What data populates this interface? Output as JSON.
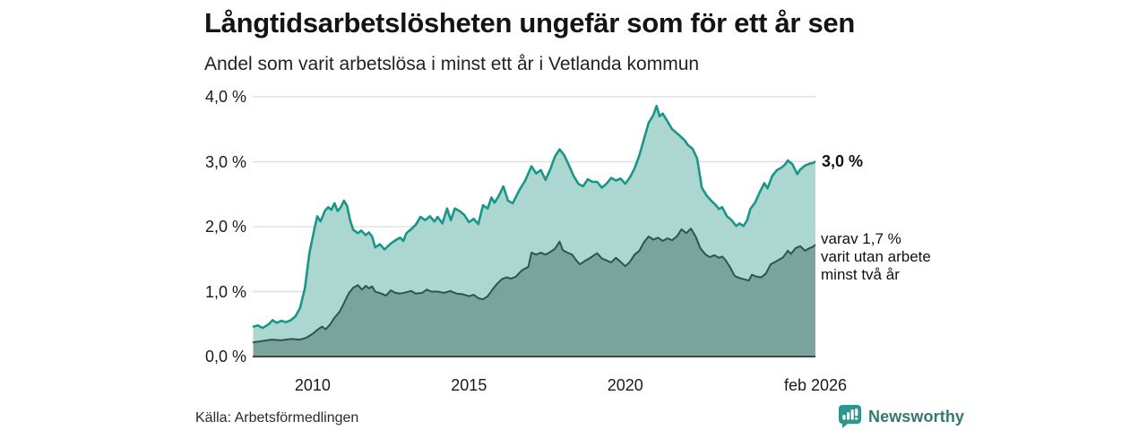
{
  "header": {
    "title": "Långtidsarbetslösheten ungefär som för ett år sen",
    "subtitle": "Andel som varit arbetslösa i minst ett år i Vetlanda kommun"
  },
  "annotations": {
    "total_label": "3,0 %",
    "subset_lines": [
      "varav 1,7 %",
      "varit utan arbete",
      "minst två år"
    ]
  },
  "footer": {
    "source": "Källa: Arbetsförmedlingen",
    "brand_name": "Newsworthy"
  },
  "colors": {
    "series_total_line": "#1a9688",
    "series_total_fill": "#abd7d0",
    "series_subset_line": "#2f544e",
    "series_subset_fill": "#7aa39b",
    "gridline": "#e0e0e0",
    "zero_axis": "#444444",
    "brand_teal": "#2e968c",
    "brand_text": "#36786f"
  },
  "chart_data": {
    "type": "area",
    "title": "Långtidsarbetslösheten ungefär som för ett år sen",
    "subtitle": "Andel som varit arbetslösa i minst ett år i Vetlanda kommun",
    "source": "Källa: Arbetsförmedlingen",
    "grid": true,
    "legend_position": "right-annotations",
    "x_domain": [
      2008.083,
      2026.083
    ],
    "y_domain": [
      0,
      4
    ],
    "y_ticks": [
      {
        "label": "0,0 %",
        "value": 0
      },
      {
        "label": "1,0 %",
        "value": 1
      },
      {
        "label": "2,0 %",
        "value": 2
      },
      {
        "label": "3,0 %",
        "value": 3
      },
      {
        "label": "4,0 %",
        "value": 4
      }
    ],
    "x_ticks": [
      {
        "label": "2010",
        "year": 2010
      },
      {
        "label": "2015",
        "year": 2015
      },
      {
        "label": "2020",
        "year": 2020
      },
      {
        "label": "feb 2026",
        "year": 2026.083
      }
    ],
    "series": [
      {
        "name": "Andel arbetslösa minst ett år",
        "end_value_pct": 3.0,
        "points": [
          [
            2008.1,
            0.46
          ],
          [
            2008.25,
            0.48
          ],
          [
            2008.4,
            0.44
          ],
          [
            2008.6,
            0.5
          ],
          [
            2008.72,
            0.56
          ],
          [
            2008.85,
            0.52
          ],
          [
            2009.0,
            0.55
          ],
          [
            2009.15,
            0.53
          ],
          [
            2009.3,
            0.56
          ],
          [
            2009.45,
            0.62
          ],
          [
            2009.6,
            0.75
          ],
          [
            2009.75,
            1.05
          ],
          [
            2009.9,
            1.6
          ],
          [
            2010.05,
            1.95
          ],
          [
            2010.15,
            2.16
          ],
          [
            2010.25,
            2.08
          ],
          [
            2010.4,
            2.25
          ],
          [
            2010.5,
            2.3
          ],
          [
            2010.6,
            2.26
          ],
          [
            2010.7,
            2.36
          ],
          [
            2010.8,
            2.24
          ],
          [
            2010.9,
            2.3
          ],
          [
            2011.0,
            2.4
          ],
          [
            2011.1,
            2.32
          ],
          [
            2011.2,
            2.1
          ],
          [
            2011.3,
            1.95
          ],
          [
            2011.45,
            1.9
          ],
          [
            2011.55,
            1.94
          ],
          [
            2011.7,
            1.87
          ],
          [
            2011.8,
            1.91
          ],
          [
            2011.9,
            1.85
          ],
          [
            2012.0,
            1.68
          ],
          [
            2012.15,
            1.73
          ],
          [
            2012.3,
            1.65
          ],
          [
            2012.5,
            1.74
          ],
          [
            2012.65,
            1.79
          ],
          [
            2012.8,
            1.83
          ],
          [
            2012.9,
            1.78
          ],
          [
            2013.0,
            1.9
          ],
          [
            2013.15,
            1.96
          ],
          [
            2013.3,
            2.03
          ],
          [
            2013.45,
            2.15
          ],
          [
            2013.6,
            2.1
          ],
          [
            2013.75,
            2.16
          ],
          [
            2013.9,
            2.08
          ],
          [
            2014.0,
            2.15
          ],
          [
            2014.15,
            2.05
          ],
          [
            2014.3,
            2.28
          ],
          [
            2014.42,
            2.1
          ],
          [
            2014.55,
            2.28
          ],
          [
            2014.7,
            2.24
          ],
          [
            2014.85,
            2.18
          ],
          [
            2015.0,
            2.07
          ],
          [
            2015.15,
            2.12
          ],
          [
            2015.3,
            2.04
          ],
          [
            2015.45,
            2.33
          ],
          [
            2015.6,
            2.28
          ],
          [
            2015.72,
            2.45
          ],
          [
            2015.82,
            2.37
          ],
          [
            2015.95,
            2.47
          ],
          [
            2016.1,
            2.62
          ],
          [
            2016.25,
            2.4
          ],
          [
            2016.4,
            2.36
          ],
          [
            2016.6,
            2.55
          ],
          [
            2016.8,
            2.71
          ],
          [
            2017.0,
            2.93
          ],
          [
            2017.15,
            2.82
          ],
          [
            2017.3,
            2.87
          ],
          [
            2017.45,
            2.72
          ],
          [
            2017.6,
            2.88
          ],
          [
            2017.75,
            3.08
          ],
          [
            2017.9,
            3.19
          ],
          [
            2018.05,
            3.1
          ],
          [
            2018.2,
            2.94
          ],
          [
            2018.35,
            2.78
          ],
          [
            2018.5,
            2.66
          ],
          [
            2018.65,
            2.62
          ],
          [
            2018.8,
            2.73
          ],
          [
            2018.95,
            2.69
          ],
          [
            2019.1,
            2.69
          ],
          [
            2019.25,
            2.6
          ],
          [
            2019.4,
            2.66
          ],
          [
            2019.55,
            2.75
          ],
          [
            2019.7,
            2.71
          ],
          [
            2019.85,
            2.74
          ],
          [
            2020.0,
            2.66
          ],
          [
            2020.15,
            2.76
          ],
          [
            2020.3,
            2.9
          ],
          [
            2020.45,
            3.1
          ],
          [
            2020.6,
            3.35
          ],
          [
            2020.75,
            3.6
          ],
          [
            2020.9,
            3.72
          ],
          [
            2021.0,
            3.86
          ],
          [
            2021.1,
            3.7
          ],
          [
            2021.2,
            3.74
          ],
          [
            2021.35,
            3.62
          ],
          [
            2021.5,
            3.5
          ],
          [
            2021.7,
            3.42
          ],
          [
            2021.9,
            3.33
          ],
          [
            2022.0,
            3.26
          ],
          [
            2022.15,
            3.2
          ],
          [
            2022.3,
            3.05
          ],
          [
            2022.45,
            2.6
          ],
          [
            2022.6,
            2.48
          ],
          [
            2022.75,
            2.4
          ],
          [
            2022.9,
            2.33
          ],
          [
            2023.0,
            2.27
          ],
          [
            2023.1,
            2.3
          ],
          [
            2023.25,
            2.16
          ],
          [
            2023.4,
            2.1
          ],
          [
            2023.55,
            2.01
          ],
          [
            2023.65,
            2.05
          ],
          [
            2023.78,
            2.01
          ],
          [
            2023.9,
            2.1
          ],
          [
            2024.0,
            2.27
          ],
          [
            2024.15,
            2.37
          ],
          [
            2024.3,
            2.53
          ],
          [
            2024.45,
            2.67
          ],
          [
            2024.55,
            2.59
          ],
          [
            2024.7,
            2.78
          ],
          [
            2024.85,
            2.87
          ],
          [
            2025.0,
            2.91
          ],
          [
            2025.1,
            2.95
          ],
          [
            2025.2,
            3.02
          ],
          [
            2025.35,
            2.96
          ],
          [
            2025.5,
            2.81
          ],
          [
            2025.6,
            2.88
          ],
          [
            2025.75,
            2.94
          ],
          [
            2025.9,
            2.97
          ],
          [
            2026.0,
            2.98
          ],
          [
            2026.08,
            3.0
          ]
        ]
      },
      {
        "name": "varav utan arbete minst två år",
        "end_value_pct": 1.7,
        "points": [
          [
            2008.1,
            0.22
          ],
          [
            2008.4,
            0.24
          ],
          [
            2008.7,
            0.26
          ],
          [
            2009.0,
            0.25
          ],
          [
            2009.3,
            0.27
          ],
          [
            2009.6,
            0.26
          ],
          [
            2009.8,
            0.29
          ],
          [
            2010.0,
            0.35
          ],
          [
            2010.15,
            0.41
          ],
          [
            2010.3,
            0.46
          ],
          [
            2010.42,
            0.42
          ],
          [
            2010.55,
            0.49
          ],
          [
            2010.7,
            0.6
          ],
          [
            2010.85,
            0.68
          ],
          [
            2011.0,
            0.82
          ],
          [
            2011.15,
            0.97
          ],
          [
            2011.3,
            1.06
          ],
          [
            2011.45,
            1.1
          ],
          [
            2011.58,
            1.03
          ],
          [
            2011.7,
            1.09
          ],
          [
            2011.8,
            1.05
          ],
          [
            2011.9,
            1.08
          ],
          [
            2012.0,
            1.0
          ],
          [
            2012.2,
            0.97
          ],
          [
            2012.35,
            0.94
          ],
          [
            2012.5,
            1.02
          ],
          [
            2012.65,
            0.98
          ],
          [
            2012.8,
            0.97
          ],
          [
            2013.0,
            0.99
          ],
          [
            2013.15,
            1.01
          ],
          [
            2013.3,
            0.97
          ],
          [
            2013.5,
            0.98
          ],
          [
            2013.65,
            1.03
          ],
          [
            2013.8,
            1.0
          ],
          [
            2014.0,
            1.0
          ],
          [
            2014.2,
            0.98
          ],
          [
            2014.4,
            1.01
          ],
          [
            2014.6,
            0.97
          ],
          [
            2014.8,
            0.96
          ],
          [
            2015.0,
            0.93
          ],
          [
            2015.15,
            0.95
          ],
          [
            2015.3,
            0.9
          ],
          [
            2015.45,
            0.88
          ],
          [
            2015.6,
            0.93
          ],
          [
            2015.75,
            1.03
          ],
          [
            2015.9,
            1.12
          ],
          [
            2016.05,
            1.19
          ],
          [
            2016.2,
            1.22
          ],
          [
            2016.35,
            1.2
          ],
          [
            2016.5,
            1.23
          ],
          [
            2016.7,
            1.33
          ],
          [
            2016.9,
            1.38
          ],
          [
            2017.0,
            1.6
          ],
          [
            2017.15,
            1.57
          ],
          [
            2017.3,
            1.6
          ],
          [
            2017.45,
            1.57
          ],
          [
            2017.6,
            1.61
          ],
          [
            2017.75,
            1.66
          ],
          [
            2017.9,
            1.77
          ],
          [
            2018.0,
            1.64
          ],
          [
            2018.15,
            1.6
          ],
          [
            2018.3,
            1.57
          ],
          [
            2018.45,
            1.47
          ],
          [
            2018.55,
            1.42
          ],
          [
            2018.7,
            1.47
          ],
          [
            2018.85,
            1.51
          ],
          [
            2019.0,
            1.56
          ],
          [
            2019.1,
            1.59
          ],
          [
            2019.25,
            1.51
          ],
          [
            2019.4,
            1.48
          ],
          [
            2019.55,
            1.45
          ],
          [
            2019.7,
            1.52
          ],
          [
            2019.85,
            1.46
          ],
          [
            2020.0,
            1.39
          ],
          [
            2020.15,
            1.46
          ],
          [
            2020.3,
            1.57
          ],
          [
            2020.45,
            1.63
          ],
          [
            2020.6,
            1.76
          ],
          [
            2020.75,
            1.85
          ],
          [
            2020.9,
            1.8
          ],
          [
            2021.05,
            1.83
          ],
          [
            2021.2,
            1.78
          ],
          [
            2021.35,
            1.82
          ],
          [
            2021.5,
            1.79
          ],
          [
            2021.65,
            1.85
          ],
          [
            2021.8,
            1.96
          ],
          [
            2021.95,
            1.9
          ],
          [
            2022.1,
            1.97
          ],
          [
            2022.25,
            1.85
          ],
          [
            2022.4,
            1.67
          ],
          [
            2022.55,
            1.58
          ],
          [
            2022.7,
            1.53
          ],
          [
            2022.85,
            1.56
          ],
          [
            2023.0,
            1.52
          ],
          [
            2023.1,
            1.54
          ],
          [
            2023.2,
            1.49
          ],
          [
            2023.35,
            1.38
          ],
          [
            2023.5,
            1.24
          ],
          [
            2023.65,
            1.21
          ],
          [
            2023.8,
            1.19
          ],
          [
            2023.95,
            1.17
          ],
          [
            2024.05,
            1.26
          ],
          [
            2024.2,
            1.23
          ],
          [
            2024.35,
            1.22
          ],
          [
            2024.5,
            1.28
          ],
          [
            2024.65,
            1.42
          ],
          [
            2024.8,
            1.46
          ],
          [
            2024.95,
            1.5
          ],
          [
            2025.05,
            1.53
          ],
          [
            2025.2,
            1.63
          ],
          [
            2025.3,
            1.58
          ],
          [
            2025.45,
            1.67
          ],
          [
            2025.6,
            1.7
          ],
          [
            2025.75,
            1.63
          ],
          [
            2025.9,
            1.67
          ],
          [
            2026.0,
            1.69
          ],
          [
            2026.08,
            1.72
          ]
        ]
      }
    ]
  }
}
